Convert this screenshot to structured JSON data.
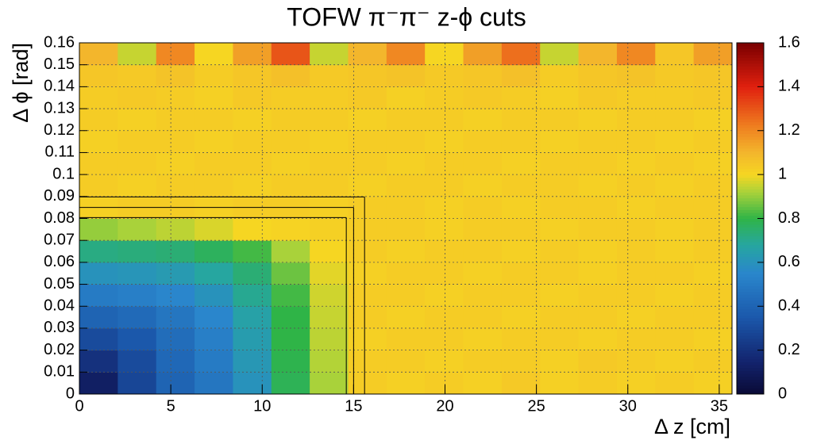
{
  "chart_data": {
    "type": "heatmap",
    "title": "TOFW π⁻π⁻  z-ϕ cuts",
    "x_label": "Δ z [cm]",
    "y_label": "Δ ϕ [rad]",
    "xlim": [
      0,
      35.7
    ],
    "ylim": [
      0,
      0.16
    ],
    "xticks": [
      0,
      5,
      10,
      15,
      20,
      25,
      30,
      35
    ],
    "yticks": [
      0,
      0.01,
      0.02,
      0.03,
      0.04,
      0.05,
      0.06,
      0.07,
      0.08,
      0.09,
      0.1,
      0.11,
      0.12,
      0.13,
      0.14,
      0.15,
      0.16
    ],
    "zlim": [
      0,
      1.6
    ],
    "zticks": [
      0,
      0.2,
      0.4,
      0.6,
      0.8,
      1,
      1.2,
      1.4,
      1.6
    ],
    "grid": true,
    "palette": [
      [
        0,
        "#0a0a35"
      ],
      [
        0.15,
        "#13246e"
      ],
      [
        0.35,
        "#1b58ab"
      ],
      [
        0.55,
        "#2a86cc"
      ],
      [
        0.68,
        "#26a6a0"
      ],
      [
        0.8,
        "#2fb447"
      ],
      [
        0.92,
        "#a9d23a"
      ],
      [
        1.0,
        "#f6d622"
      ],
      [
        1.1,
        "#f3b62c"
      ],
      [
        1.22,
        "#ef7f20"
      ],
      [
        1.4,
        "#e0200f"
      ],
      [
        1.6,
        "#7a0000"
      ]
    ],
    "xbins": [
      0,
      2.1,
      4.2,
      6.3,
      8.4,
      10.5,
      12.6,
      14.7,
      16.8,
      18.9,
      21,
      23.1,
      25.2,
      27.3,
      29.4,
      31.5,
      33.6,
      35.7
    ],
    "ybins": [
      0,
      0.01,
      0.02,
      0.03,
      0.04,
      0.05,
      0.06,
      0.07,
      0.08,
      0.09,
      0.1,
      0.11,
      0.12,
      0.13,
      0.14,
      0.15,
      0.16
    ],
    "z": [
      [
        0.12,
        0.28,
        0.4,
        0.48,
        0.6,
        0.78,
        0.92,
        1.03,
        1.02,
        1.03,
        1.02,
        1.04,
        1.02,
        1.03,
        1.02,
        1.03,
        1.02
      ],
      [
        0.2,
        0.3,
        0.42,
        0.5,
        0.62,
        0.79,
        0.93,
        1.03,
        1.03,
        1.02,
        1.03,
        1.03,
        1.02,
        1.04,
        1.03,
        1.02,
        1.03
      ],
      [
        0.3,
        0.35,
        0.44,
        0.52,
        0.64,
        0.8,
        0.94,
        1.02,
        1.03,
        1.03,
        1.02,
        1.03,
        1.03,
        1.02,
        1.03,
        1.03,
        1.02
      ],
      [
        0.4,
        0.43,
        0.48,
        0.55,
        0.66,
        0.8,
        0.95,
        1.03,
        1.02,
        1.03,
        1.03,
        1.02,
        1.03,
        1.03,
        1.02,
        1.03,
        1.03
      ],
      [
        0.5,
        0.52,
        0.55,
        0.6,
        0.7,
        0.82,
        0.96,
        1.03,
        1.03,
        1.02,
        1.03,
        1.03,
        1.02,
        1.03,
        1.03,
        1.02,
        1.03
      ],
      [
        0.6,
        0.61,
        0.63,
        0.68,
        0.74,
        0.86,
        0.98,
        1.02,
        1.03,
        1.03,
        1.02,
        1.03,
        1.03,
        1.02,
        1.03,
        1.03,
        1.02
      ],
      [
        0.72,
        0.73,
        0.74,
        0.77,
        0.82,
        0.92,
        1.0,
        1.03,
        1.02,
        1.03,
        1.03,
        1.02,
        1.03,
        1.02,
        1.03,
        1.02,
        1.03
      ],
      [
        0.9,
        0.92,
        0.94,
        0.97,
        1.0,
        1.01,
        1.02,
        1.03,
        1.03,
        1.02,
        1.03,
        1.03,
        1.02,
        1.03,
        1.03,
        1.02,
        1.03
      ],
      [
        1.02,
        1.03,
        1.03,
        1.02,
        1.03,
        1.03,
        1.02,
        1.03,
        1.03,
        1.02,
        1.03,
        1.02,
        1.03,
        1.03,
        1.02,
        1.03,
        1.03
      ],
      [
        1.03,
        1.02,
        1.03,
        1.03,
        1.02,
        1.03,
        1.03,
        1.02,
        1.03,
        1.03,
        1.02,
        1.03,
        1.03,
        1.02,
        1.03,
        1.02,
        1.03
      ],
      [
        1.03,
        1.03,
        1.02,
        1.03,
        1.03,
        1.02,
        1.03,
        1.03,
        1.02,
        1.03,
        1.03,
        1.02,
        1.03,
        1.03,
        1.02,
        1.03,
        1.02
      ],
      [
        1.02,
        1.03,
        1.03,
        1.02,
        1.03,
        1.03,
        1.02,
        1.03,
        1.03,
        1.02,
        1.03,
        1.03,
        1.02,
        1.03,
        1.03,
        1.02,
        1.03
      ],
      [
        1.03,
        1.02,
        1.03,
        1.03,
        1.02,
        1.03,
        1.03,
        1.02,
        1.03,
        1.03,
        1.02,
        1.03,
        1.03,
        1.02,
        1.03,
        1.03,
        1.02
      ],
      [
        1.03,
        1.04,
        1.03,
        1.02,
        1.04,
        1.03,
        1.03,
        1.04,
        1.02,
        1.03,
        1.04,
        1.03,
        1.02,
        1.04,
        1.03,
        1.03,
        1.04
      ],
      [
        1.05,
        1.04,
        1.06,
        1.03,
        1.05,
        1.07,
        1.04,
        1.05,
        1.06,
        1.04,
        1.05,
        1.07,
        1.03,
        1.05,
        1.06,
        1.04,
        1.05
      ],
      [
        1.1,
        0.95,
        1.2,
        1.0,
        1.15,
        1.3,
        0.95,
        1.1,
        1.2,
        1.0,
        1.15,
        1.25,
        0.95,
        1.1,
        1.2,
        1.05,
        1.15
      ]
    ],
    "cut_boxes": [
      {
        "z": 14.6,
        "phi": 0.0804
      },
      {
        "z": 15.0,
        "phi": 0.085
      },
      {
        "z": 15.6,
        "phi": 0.0898
      }
    ]
  }
}
